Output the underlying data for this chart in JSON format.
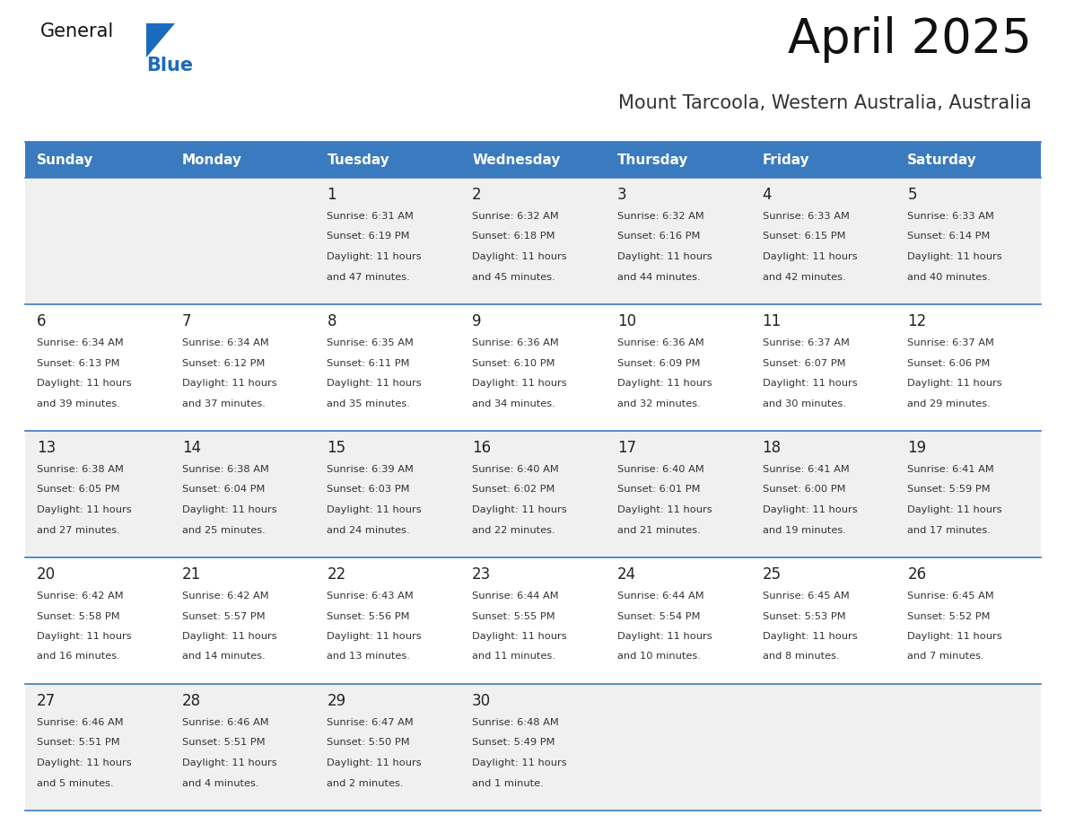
{
  "title": "April 2025",
  "subtitle": "Mount Tarcoola, Western Australia, Australia",
  "days_of_week": [
    "Sunday",
    "Monday",
    "Tuesday",
    "Wednesday",
    "Thursday",
    "Friday",
    "Saturday"
  ],
  "header_bg": "#3a7abf",
  "header_text_color": "#ffffff",
  "row_bg_odd": "#f0f0f0",
  "row_bg_even": "#ffffff",
  "cell_border_color": "#3a7abf",
  "day_number_color": "#222222",
  "cell_text_color": "#333333",
  "title_color": "#111111",
  "subtitle_color": "#333333",
  "logo_general_color": "#111111",
  "logo_blue_color": "#1a6bbf",
  "weeks": [
    [
      {
        "day": "",
        "sunrise": "",
        "sunset": "",
        "daylight": ""
      },
      {
        "day": "",
        "sunrise": "",
        "sunset": "",
        "daylight": ""
      },
      {
        "day": "1",
        "sunrise": "Sunrise: 6:31 AM",
        "sunset": "Sunset: 6:19 PM",
        "daylight": "Daylight: 11 hours\nand 47 minutes."
      },
      {
        "day": "2",
        "sunrise": "Sunrise: 6:32 AM",
        "sunset": "Sunset: 6:18 PM",
        "daylight": "Daylight: 11 hours\nand 45 minutes."
      },
      {
        "day": "3",
        "sunrise": "Sunrise: 6:32 AM",
        "sunset": "Sunset: 6:16 PM",
        "daylight": "Daylight: 11 hours\nand 44 minutes."
      },
      {
        "day": "4",
        "sunrise": "Sunrise: 6:33 AM",
        "sunset": "Sunset: 6:15 PM",
        "daylight": "Daylight: 11 hours\nand 42 minutes."
      },
      {
        "day": "5",
        "sunrise": "Sunrise: 6:33 AM",
        "sunset": "Sunset: 6:14 PM",
        "daylight": "Daylight: 11 hours\nand 40 minutes."
      }
    ],
    [
      {
        "day": "6",
        "sunrise": "Sunrise: 6:34 AM",
        "sunset": "Sunset: 6:13 PM",
        "daylight": "Daylight: 11 hours\nand 39 minutes."
      },
      {
        "day": "7",
        "sunrise": "Sunrise: 6:34 AM",
        "sunset": "Sunset: 6:12 PM",
        "daylight": "Daylight: 11 hours\nand 37 minutes."
      },
      {
        "day": "8",
        "sunrise": "Sunrise: 6:35 AM",
        "sunset": "Sunset: 6:11 PM",
        "daylight": "Daylight: 11 hours\nand 35 minutes."
      },
      {
        "day": "9",
        "sunrise": "Sunrise: 6:36 AM",
        "sunset": "Sunset: 6:10 PM",
        "daylight": "Daylight: 11 hours\nand 34 minutes."
      },
      {
        "day": "10",
        "sunrise": "Sunrise: 6:36 AM",
        "sunset": "Sunset: 6:09 PM",
        "daylight": "Daylight: 11 hours\nand 32 minutes."
      },
      {
        "day": "11",
        "sunrise": "Sunrise: 6:37 AM",
        "sunset": "Sunset: 6:07 PM",
        "daylight": "Daylight: 11 hours\nand 30 minutes."
      },
      {
        "day": "12",
        "sunrise": "Sunrise: 6:37 AM",
        "sunset": "Sunset: 6:06 PM",
        "daylight": "Daylight: 11 hours\nand 29 minutes."
      }
    ],
    [
      {
        "day": "13",
        "sunrise": "Sunrise: 6:38 AM",
        "sunset": "Sunset: 6:05 PM",
        "daylight": "Daylight: 11 hours\nand 27 minutes."
      },
      {
        "day": "14",
        "sunrise": "Sunrise: 6:38 AM",
        "sunset": "Sunset: 6:04 PM",
        "daylight": "Daylight: 11 hours\nand 25 minutes."
      },
      {
        "day": "15",
        "sunrise": "Sunrise: 6:39 AM",
        "sunset": "Sunset: 6:03 PM",
        "daylight": "Daylight: 11 hours\nand 24 minutes."
      },
      {
        "day": "16",
        "sunrise": "Sunrise: 6:40 AM",
        "sunset": "Sunset: 6:02 PM",
        "daylight": "Daylight: 11 hours\nand 22 minutes."
      },
      {
        "day": "17",
        "sunrise": "Sunrise: 6:40 AM",
        "sunset": "Sunset: 6:01 PM",
        "daylight": "Daylight: 11 hours\nand 21 minutes."
      },
      {
        "day": "18",
        "sunrise": "Sunrise: 6:41 AM",
        "sunset": "Sunset: 6:00 PM",
        "daylight": "Daylight: 11 hours\nand 19 minutes."
      },
      {
        "day": "19",
        "sunrise": "Sunrise: 6:41 AM",
        "sunset": "Sunset: 5:59 PM",
        "daylight": "Daylight: 11 hours\nand 17 minutes."
      }
    ],
    [
      {
        "day": "20",
        "sunrise": "Sunrise: 6:42 AM",
        "sunset": "Sunset: 5:58 PM",
        "daylight": "Daylight: 11 hours\nand 16 minutes."
      },
      {
        "day": "21",
        "sunrise": "Sunrise: 6:42 AM",
        "sunset": "Sunset: 5:57 PM",
        "daylight": "Daylight: 11 hours\nand 14 minutes."
      },
      {
        "day": "22",
        "sunrise": "Sunrise: 6:43 AM",
        "sunset": "Sunset: 5:56 PM",
        "daylight": "Daylight: 11 hours\nand 13 minutes."
      },
      {
        "day": "23",
        "sunrise": "Sunrise: 6:44 AM",
        "sunset": "Sunset: 5:55 PM",
        "daylight": "Daylight: 11 hours\nand 11 minutes."
      },
      {
        "day": "24",
        "sunrise": "Sunrise: 6:44 AM",
        "sunset": "Sunset: 5:54 PM",
        "daylight": "Daylight: 11 hours\nand 10 minutes."
      },
      {
        "day": "25",
        "sunrise": "Sunrise: 6:45 AM",
        "sunset": "Sunset: 5:53 PM",
        "daylight": "Daylight: 11 hours\nand 8 minutes."
      },
      {
        "day": "26",
        "sunrise": "Sunrise: 6:45 AM",
        "sunset": "Sunset: 5:52 PM",
        "daylight": "Daylight: 11 hours\nand 7 minutes."
      }
    ],
    [
      {
        "day": "27",
        "sunrise": "Sunrise: 6:46 AM",
        "sunset": "Sunset: 5:51 PM",
        "daylight": "Daylight: 11 hours\nand 5 minutes."
      },
      {
        "day": "28",
        "sunrise": "Sunrise: 6:46 AM",
        "sunset": "Sunset: 5:51 PM",
        "daylight": "Daylight: 11 hours\nand 4 minutes."
      },
      {
        "day": "29",
        "sunrise": "Sunrise: 6:47 AM",
        "sunset": "Sunset: 5:50 PM",
        "daylight": "Daylight: 11 hours\nand 2 minutes."
      },
      {
        "day": "30",
        "sunrise": "Sunrise: 6:48 AM",
        "sunset": "Sunset: 5:49 PM",
        "daylight": "Daylight: 11 hours\nand 1 minute."
      },
      {
        "day": "",
        "sunrise": "",
        "sunset": "",
        "daylight": ""
      },
      {
        "day": "",
        "sunrise": "",
        "sunset": "",
        "daylight": ""
      },
      {
        "day": "",
        "sunrise": "",
        "sunset": "",
        "daylight": ""
      }
    ]
  ]
}
